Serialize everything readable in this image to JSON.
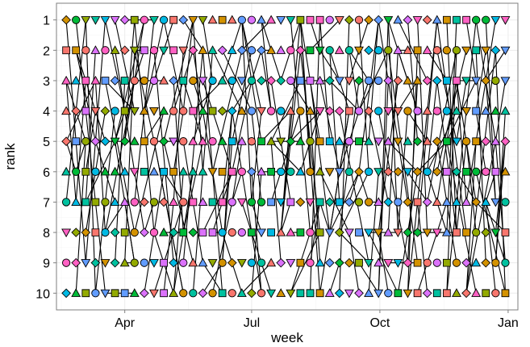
{
  "chart_data": {
    "type": "scatter",
    "title": "",
    "xlabel": "week",
    "ylabel": "rank",
    "x_ticks": [
      {
        "label": "Apr",
        "x": "2000-04-01"
      },
      {
        "label": "Jul",
        "x": "2000-07-01"
      },
      {
        "label": "Oct",
        "x": "2000-10-01"
      },
      {
        "label": "Jan",
        "x": "2001-01-01"
      }
    ],
    "xlim": [
      "2000-02-12",
      "2001-01-08"
    ],
    "ylim": [
      10.55,
      0.45
    ],
    "y_ticks": [
      1,
      2,
      3,
      4,
      5,
      6,
      7,
      8,
      9,
      10
    ],
    "y_reversed": true,
    "grid": true,
    "legend": "none",
    "background": "#ffffff",
    "grid_color": "#ececec",
    "palette": [
      "#F8766D",
      "#D39200",
      "#93AA00",
      "#00BA38",
      "#00C19F",
      "#00B9E3",
      "#619CFF",
      "#DB72FB",
      "#FF61C3"
    ],
    "marker_shapes": [
      "circle",
      "triangle",
      "square",
      "diamond",
      "triangle-down"
    ],
    "connector_color": "#000000",
    "series": [
      {
        "x": [
          "2000-02-19",
          "2000-02-26",
          "2000-03-04",
          "2000-03-11",
          "2000-03-18",
          "2000-03-25",
          "2000-04-01",
          "2000-04-08",
          "2000-04-15",
          "2000-04-22",
          "2000-04-29",
          "2000-05-06",
          "2000-05-13",
          "2000-05-20",
          "2000-05-27",
          "2000-06-03",
          "2000-06-10",
          "2000-06-17",
          "2000-06-24",
          "2000-07-01",
          "2000-07-08",
          "2000-07-15",
          "2000-07-22",
          "2000-07-29",
          "2000-08-05",
          "2000-08-12",
          "2000-08-19",
          "2000-08-26",
          "2000-09-02",
          "2000-09-09",
          "2000-09-16",
          "2000-09-23",
          "2000-09-30",
          "2000-10-07",
          "2000-10-14",
          "2000-10-21",
          "2000-10-28",
          "2000-11-04",
          "2000-11-11",
          "2000-11-18",
          "2000-11-25",
          "2000-12-02",
          "2000-12-09",
          "2000-12-16",
          "2000-12-23",
          "2000-12-30"
        ],
        "y": [
          1,
          1,
          1,
          1,
          1,
          1,
          1,
          1,
          1,
          1,
          1,
          1,
          1,
          1,
          1,
          1,
          1,
          1,
          1,
          1,
          1,
          1,
          1,
          1,
          1,
          1,
          1,
          1,
          1,
          1,
          1,
          1,
          1,
          1,
          1,
          1,
          1,
          1,
          1,
          1,
          1,
          1,
          1,
          1,
          1,
          1
        ]
      },
      {
        "x": [
          "2000-02-19",
          "2000-02-26",
          "2000-03-04",
          "2000-03-11",
          "2000-03-18",
          "2000-03-25",
          "2000-04-01",
          "2000-04-08",
          "2000-04-15",
          "2000-04-22",
          "2000-04-29",
          "2000-05-06",
          "2000-05-13",
          "2000-05-20",
          "2000-05-27",
          "2000-06-03",
          "2000-06-10",
          "2000-06-17",
          "2000-06-24",
          "2000-07-01",
          "2000-07-08",
          "2000-07-15",
          "2000-07-22",
          "2000-07-29",
          "2000-08-05",
          "2000-08-12",
          "2000-08-19",
          "2000-08-26",
          "2000-09-02",
          "2000-09-09",
          "2000-09-16",
          "2000-09-23",
          "2000-09-30",
          "2000-10-07",
          "2000-10-14",
          "2000-10-21",
          "2000-10-28",
          "2000-11-04",
          "2000-11-11",
          "2000-11-18",
          "2000-11-25",
          "2000-12-02",
          "2000-12-09",
          "2000-12-16",
          "2000-12-23",
          "2000-12-30"
        ],
        "y": [
          2,
          2,
          2,
          2,
          2,
          2,
          2,
          2,
          2,
          2,
          2,
          2,
          2,
          2,
          2,
          2,
          2,
          2,
          2,
          2,
          2,
          2,
          2,
          2,
          2,
          2,
          2,
          2,
          2,
          2,
          2,
          2,
          2,
          2,
          2,
          2,
          2,
          2,
          2,
          2,
          2,
          2,
          2,
          2,
          2,
          2
        ]
      },
      {
        "x": [
          "2000-02-19",
          "2000-02-26",
          "2000-03-04",
          "2000-03-11",
          "2000-03-18",
          "2000-03-25",
          "2000-04-01",
          "2000-04-08",
          "2000-04-15",
          "2000-04-22",
          "2000-04-29",
          "2000-05-06",
          "2000-05-13",
          "2000-05-20",
          "2000-05-27",
          "2000-06-03",
          "2000-06-10",
          "2000-06-17",
          "2000-06-24",
          "2000-07-01",
          "2000-07-08",
          "2000-07-15",
          "2000-07-22",
          "2000-07-29",
          "2000-08-05",
          "2000-08-12",
          "2000-08-19",
          "2000-08-26",
          "2000-09-02",
          "2000-09-09",
          "2000-09-16",
          "2000-09-23",
          "2000-09-30",
          "2000-10-07",
          "2000-10-14",
          "2000-10-21",
          "2000-10-28",
          "2000-11-04",
          "2000-11-11",
          "2000-11-18",
          "2000-11-25",
          "2000-12-02",
          "2000-12-09",
          "2000-12-16",
          "2000-12-23",
          "2000-12-30"
        ],
        "y": [
          3,
          3,
          3,
          3,
          3,
          3,
          3,
          3,
          3,
          3,
          3,
          3,
          3,
          3,
          3,
          3,
          3,
          3,
          3,
          3,
          3,
          3,
          3,
          3,
          3,
          3,
          3,
          3,
          3,
          3,
          3,
          3,
          3,
          3,
          3,
          3,
          3,
          3,
          3,
          3,
          3,
          3,
          3,
          3,
          3,
          3
        ]
      },
      {
        "x": [
          "2000-02-19",
          "2000-02-26",
          "2000-03-04",
          "2000-03-11",
          "2000-03-18",
          "2000-03-25",
          "2000-04-01",
          "2000-04-08",
          "2000-04-15",
          "2000-04-22",
          "2000-04-29",
          "2000-05-06",
          "2000-05-13",
          "2000-05-20",
          "2000-05-27",
          "2000-06-03",
          "2000-06-10",
          "2000-06-17",
          "2000-06-24",
          "2000-07-01",
          "2000-07-08",
          "2000-07-15",
          "2000-07-22",
          "2000-07-29",
          "2000-08-05",
          "2000-08-12",
          "2000-08-19",
          "2000-08-26",
          "2000-09-02",
          "2000-09-09",
          "2000-09-16",
          "2000-09-23",
          "2000-09-30",
          "2000-10-07",
          "2000-10-14",
          "2000-10-21",
          "2000-10-28",
          "2000-11-04",
          "2000-11-11",
          "2000-11-18",
          "2000-11-25",
          "2000-12-02",
          "2000-12-09",
          "2000-12-16",
          "2000-12-23",
          "2000-12-30"
        ],
        "y": [
          4,
          4,
          4,
          4,
          4,
          4,
          4,
          4,
          4,
          4,
          4,
          4,
          4,
          4,
          4,
          4,
          4,
          4,
          4,
          4,
          4,
          4,
          4,
          4,
          4,
          4,
          4,
          4,
          4,
          4,
          4,
          4,
          4,
          4,
          4,
          4,
          4,
          4,
          4,
          4,
          4,
          4,
          4,
          4,
          4,
          4
        ]
      },
      {
        "x": [
          "2000-02-19",
          "2000-02-26",
          "2000-03-04",
          "2000-03-11",
          "2000-03-18",
          "2000-03-25",
          "2000-04-01",
          "2000-04-08",
          "2000-04-15",
          "2000-04-22",
          "2000-04-29",
          "2000-05-06",
          "2000-05-13",
          "2000-05-20",
          "2000-05-27",
          "2000-06-03",
          "2000-06-10",
          "2000-06-17",
          "2000-06-24",
          "2000-07-01",
          "2000-07-08",
          "2000-07-15",
          "2000-07-22",
          "2000-07-29",
          "2000-08-05",
          "2000-08-12",
          "2000-08-19",
          "2000-08-26",
          "2000-09-02",
          "2000-09-09",
          "2000-09-16",
          "2000-09-23",
          "2000-09-30",
          "2000-10-07",
          "2000-10-14",
          "2000-10-21",
          "2000-10-28",
          "2000-11-04",
          "2000-11-11",
          "2000-11-18",
          "2000-11-25",
          "2000-12-02",
          "2000-12-09",
          "2000-12-16",
          "2000-12-23",
          "2000-12-30"
        ],
        "y": [
          5,
          5,
          5,
          5,
          5,
          5,
          5,
          5,
          5,
          5,
          5,
          5,
          5,
          5,
          5,
          5,
          5,
          5,
          5,
          5,
          5,
          5,
          5,
          5,
          5,
          5,
          5,
          5,
          5,
          5,
          5,
          5,
          5,
          5,
          5,
          5,
          5,
          5,
          5,
          5,
          5,
          5,
          5,
          5,
          5,
          5
        ]
      },
      {
        "x": [
          "2000-02-19",
          "2000-02-26",
          "2000-03-04",
          "2000-03-11",
          "2000-03-18",
          "2000-03-25",
          "2000-04-01",
          "2000-04-08",
          "2000-04-15",
          "2000-04-22",
          "2000-04-29",
          "2000-05-06",
          "2000-05-13",
          "2000-05-20",
          "2000-05-27",
          "2000-06-03",
          "2000-06-10",
          "2000-06-17",
          "2000-06-24",
          "2000-07-01",
          "2000-07-08",
          "2000-07-15",
          "2000-07-22",
          "2000-07-29",
          "2000-08-05",
          "2000-08-12",
          "2000-08-19",
          "2000-08-26",
          "2000-09-02",
          "2000-09-09",
          "2000-09-16",
          "2000-09-23",
          "2000-09-30",
          "2000-10-07",
          "2000-10-14",
          "2000-10-21",
          "2000-10-28",
          "2000-11-04",
          "2000-11-11",
          "2000-11-18",
          "2000-11-25",
          "2000-12-02",
          "2000-12-09",
          "2000-12-16",
          "2000-12-23",
          "2000-12-30"
        ],
        "y": [
          6,
          6,
          6,
          6,
          6,
          6,
          6,
          6,
          6,
          6,
          6,
          6,
          6,
          6,
          6,
          6,
          6,
          6,
          6,
          6,
          6,
          6,
          6,
          6,
          6,
          6,
          6,
          6,
          6,
          6,
          6,
          6,
          6,
          6,
          6,
          6,
          6,
          6,
          6,
          6,
          6,
          6,
          6,
          6,
          6,
          6
        ]
      },
      {
        "x": [
          "2000-02-19",
          "2000-02-26",
          "2000-03-04",
          "2000-03-11",
          "2000-03-18",
          "2000-03-25",
          "2000-04-01",
          "2000-04-08",
          "2000-04-15",
          "2000-04-22",
          "2000-04-29",
          "2000-05-06",
          "2000-05-13",
          "2000-05-20",
          "2000-05-27",
          "2000-06-03",
          "2000-06-10",
          "2000-06-17",
          "2000-06-24",
          "2000-07-01",
          "2000-07-08",
          "2000-07-15",
          "2000-07-22",
          "2000-07-29",
          "2000-08-05",
          "2000-08-12",
          "2000-08-19",
          "2000-08-26",
          "2000-09-02",
          "2000-09-09",
          "2000-09-16",
          "2000-09-23",
          "2000-09-30",
          "2000-10-07",
          "2000-10-14",
          "2000-10-21",
          "2000-10-28",
          "2000-11-04",
          "2000-11-11",
          "2000-11-18",
          "2000-11-25",
          "2000-12-02",
          "2000-12-09",
          "2000-12-16",
          "2000-12-23",
          "2000-12-30"
        ],
        "y": [
          7,
          7,
          7,
          7,
          7,
          7,
          7,
          7,
          7,
          7,
          7,
          7,
          7,
          7,
          7,
          7,
          7,
          7,
          7,
          7,
          7,
          7,
          7,
          7,
          7,
          7,
          7,
          7,
          7,
          7,
          7,
          7,
          7,
          7,
          7,
          7,
          7,
          7,
          7,
          7,
          7,
          7,
          7,
          7,
          7,
          7
        ]
      },
      {
        "x": [
          "2000-02-19",
          "2000-02-26",
          "2000-03-04",
          "2000-03-11",
          "2000-03-18",
          "2000-03-25",
          "2000-04-01",
          "2000-04-08",
          "2000-04-15",
          "2000-04-22",
          "2000-04-29",
          "2000-05-06",
          "2000-05-13",
          "2000-05-20",
          "2000-05-27",
          "2000-06-03",
          "2000-06-10",
          "2000-06-17",
          "2000-06-24",
          "2000-07-01",
          "2000-07-08",
          "2000-07-15",
          "2000-07-22",
          "2000-07-29",
          "2000-08-05",
          "2000-08-12",
          "2000-08-19",
          "2000-08-26",
          "2000-09-02",
          "2000-09-09",
          "2000-09-16",
          "2000-09-23",
          "2000-09-30",
          "2000-10-07",
          "2000-10-14",
          "2000-10-21",
          "2000-10-28",
          "2000-11-04",
          "2000-11-11",
          "2000-11-18",
          "2000-11-25",
          "2000-12-02",
          "2000-12-09",
          "2000-12-16",
          "2000-12-23",
          "2000-12-30"
        ],
        "y": [
          8,
          8,
          8,
          8,
          8,
          8,
          8,
          8,
          8,
          8,
          8,
          8,
          8,
          8,
          8,
          8,
          8,
          8,
          8,
          8,
          8,
          8,
          8,
          8,
          8,
          8,
          8,
          8,
          8,
          8,
          8,
          8,
          8,
          8,
          8,
          8,
          8,
          8,
          8,
          8,
          8,
          8,
          8,
          8,
          8,
          8
        ]
      },
      {
        "x": [
          "2000-02-19",
          "2000-02-26",
          "2000-03-04",
          "2000-03-11",
          "2000-03-18",
          "2000-03-25",
          "2000-04-01",
          "2000-04-08",
          "2000-04-15",
          "2000-04-22",
          "2000-04-29",
          "2000-05-06",
          "2000-05-13",
          "2000-05-20",
          "2000-05-27",
          "2000-06-03",
          "2000-06-10",
          "2000-06-17",
          "2000-06-24",
          "2000-07-01",
          "2000-07-08",
          "2000-07-15",
          "2000-07-22",
          "2000-07-29",
          "2000-08-05",
          "2000-08-12",
          "2000-08-19",
          "2000-08-26",
          "2000-09-02",
          "2000-09-09",
          "2000-09-16",
          "2000-09-23",
          "2000-09-30",
          "2000-10-07",
          "2000-10-14",
          "2000-10-21",
          "2000-10-28",
          "2000-11-04",
          "2000-11-11",
          "2000-11-18",
          "2000-11-25",
          "2000-12-02",
          "2000-12-09",
          "2000-12-16",
          "2000-12-23",
          "2000-12-30"
        ],
        "y": [
          9,
          9,
          9,
          9,
          9,
          9,
          9,
          9,
          9,
          9,
          9,
          9,
          9,
          9,
          9,
          9,
          9,
          9,
          9,
          9,
          9,
          9,
          9,
          9,
          9,
          9,
          9,
          9,
          9,
          9,
          9,
          9,
          9,
          9,
          9,
          9,
          9,
          9,
          9,
          9,
          9,
          9,
          9,
          9,
          9,
          9
        ]
      },
      {
        "x": [
          "2000-02-19",
          "2000-02-26",
          "2000-03-04",
          "2000-03-11",
          "2000-03-18",
          "2000-03-25",
          "2000-04-01",
          "2000-04-08",
          "2000-04-15",
          "2000-04-22",
          "2000-04-29",
          "2000-05-06",
          "2000-05-13",
          "2000-05-20",
          "2000-05-27",
          "2000-06-03",
          "2000-06-10",
          "2000-06-17",
          "2000-06-24",
          "2000-07-01",
          "2000-07-08",
          "2000-07-15",
          "2000-07-22",
          "2000-07-29",
          "2000-08-05",
          "2000-08-12",
          "2000-08-19",
          "2000-08-26",
          "2000-09-02",
          "2000-09-09",
          "2000-09-16",
          "2000-09-23",
          "2000-09-30",
          "2000-10-07",
          "2000-10-14",
          "2000-10-21",
          "2000-10-28",
          "2000-11-04",
          "2000-11-11",
          "2000-11-18",
          "2000-11-25",
          "2000-12-02",
          "2000-12-09",
          "2000-12-16",
          "2000-12-23",
          "2000-12-30"
        ],
        "y": [
          10,
          10,
          10,
          10,
          10,
          10,
          10,
          10,
          10,
          10,
          10,
          10,
          10,
          10,
          10,
          10,
          10,
          10,
          10,
          10,
          10,
          10,
          10,
          10,
          10,
          10,
          10,
          10,
          10,
          10,
          10,
          10,
          10,
          10,
          10,
          10,
          10,
          10,
          10,
          10,
          10,
          10,
          10,
          10,
          10,
          10
        ]
      }
    ]
  }
}
